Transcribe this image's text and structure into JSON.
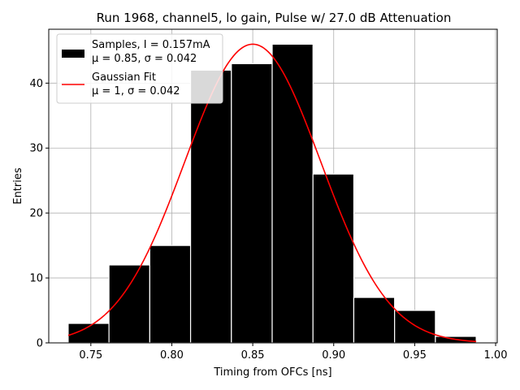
{
  "chart_data": {
    "type": "bar",
    "title": "Run 1968, channel5, lo gain, Pulse w/ 27.0 dB Attenuation",
    "xlabel": "Timing from OFCs [ns]",
    "ylabel": "Entries",
    "xlim": [
      0.724,
      1.001
    ],
    "ylim": [
      0,
      48.3
    ],
    "xticks": [
      0.75,
      0.8,
      0.85,
      0.9,
      0.95,
      1.0
    ],
    "xtick_labels": [
      "0.75",
      "0.80",
      "0.85",
      "0.90",
      "0.95",
      "1.00"
    ],
    "yticks": [
      0,
      10,
      20,
      30,
      40
    ],
    "ytick_labels": [
      "0",
      "10",
      "20",
      "30",
      "40"
    ],
    "grid": true,
    "legend_position": "top-left",
    "histogram": {
      "name_line1": "Samples, I = 0.157mA",
      "name_line2": "μ = 0.85, σ = 0.042",
      "color": "#000000",
      "edge_color": "#ffffff",
      "bin_edges": [
        0.736,
        0.7612,
        0.7864,
        0.8116,
        0.8368,
        0.862,
        0.8872,
        0.9124,
        0.9376,
        0.9628,
        0.988
      ],
      "counts": [
        3,
        12,
        15,
        42,
        43,
        46,
        26,
        7,
        5,
        1
      ]
    },
    "fit": {
      "name_line1": "Gaussian Fit",
      "name_line2": "μ = 1, σ = 0.042",
      "color": "#ff0000",
      "amplitude": 46,
      "mean": 0.85,
      "sigma": 0.042,
      "x_start": 0.736,
      "x_end": 0.988
    }
  }
}
